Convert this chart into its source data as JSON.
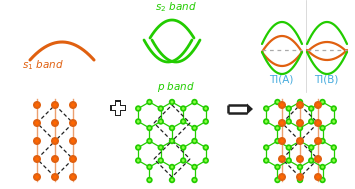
{
  "orange": "#e06010",
  "green": "#22cc00",
  "blue": "#44aadd",
  "gray": "#aaaaaa",
  "black": "#222222",
  "white": "#ffffff",
  "s1_label": "$s_1$ band",
  "s2_label": "$s_2$ band",
  "p_label": "$p$ band",
  "TIA_label": "TI(A)",
  "TIB_label": "TI(B)"
}
